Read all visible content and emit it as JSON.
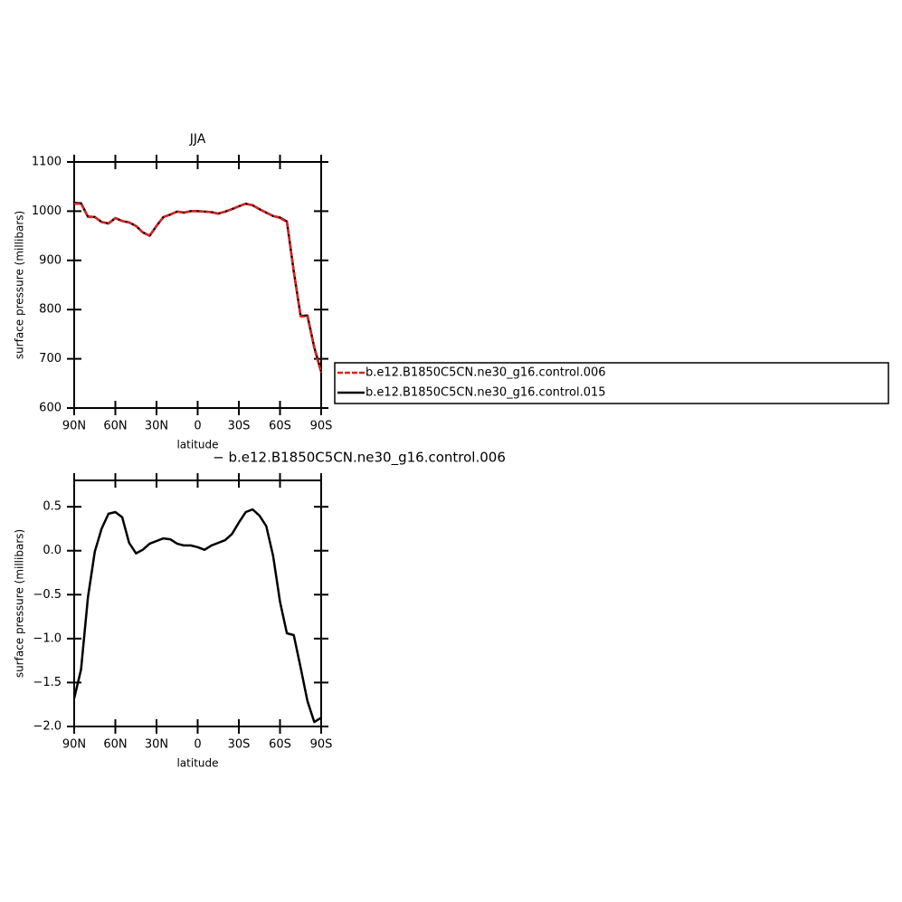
{
  "chart_data": [
    {
      "type": "line",
      "title": "JJA",
      "xlabel": "latitude",
      "ylabel": "surface pressure (millibars)",
      "x": [
        90,
        85,
        80,
        75,
        70,
        65,
        60,
        55,
        50,
        45,
        40,
        35,
        30,
        25,
        20,
        15,
        10,
        5,
        0,
        -5,
        -10,
        -15,
        -20,
        -25,
        -30,
        -35,
        -40,
        -45,
        -50,
        -55,
        -60,
        -65,
        -70,
        -75,
        -80,
        -85,
        -90
      ],
      "xlim": [
        90,
        -90
      ],
      "xticks": [
        {
          "value": 90,
          "label": "90N"
        },
        {
          "value": 60,
          "label": "60N"
        },
        {
          "value": 30,
          "label": "30N"
        },
        0,
        {
          "value": -30,
          "label": "30S"
        },
        {
          "value": -60,
          "label": "60S"
        },
        {
          "value": -90,
          "label": "90S"
        }
      ],
      "ylim": [
        600,
        1100
      ],
      "yticks": [
        600,
        700,
        800,
        900,
        1000,
        1100
      ],
      "series": [
        {
          "name": "b.e12.B1850C5CN.ne30_g16.control.015",
          "color": "#000000",
          "values": [
            1017,
            1016,
            989,
            988,
            978,
            975,
            986,
            980,
            977,
            970,
            957,
            950,
            970,
            988,
            993,
            999,
            997,
            1000,
            1000,
            999,
            998,
            995,
            999,
            1004,
            1010,
            1015,
            1012,
            1004,
            997,
            990,
            987,
            979,
            878,
            787,
            788,
            723,
            674
          ]
        },
        {
          "name": "b.e12.B1850C5CN.ne30_g16.control.006",
          "color": "#e0201c",
          "dashed": true,
          "values": [
            1015,
            1015,
            988,
            988,
            978,
            975,
            986,
            980,
            977,
            970,
            957,
            950,
            970,
            988,
            993,
            999,
            997,
            1000,
            1000,
            999,
            998,
            995,
            999,
            1004,
            1010,
            1015,
            1012,
            1004,
            997,
            990,
            986,
            978,
            877,
            786,
            786,
            721,
            672
          ]
        }
      ]
    },
    {
      "type": "line",
      "title": "− b.e12.B1850C5CN.ne30_g16.control.006",
      "xlabel": "latitude",
      "ylabel": "surface pressure (millibars)",
      "x": [
        90,
        85,
        80,
        75,
        70,
        65,
        60,
        55,
        50,
        45,
        40,
        35,
        30,
        25,
        20,
        15,
        10,
        5,
        0,
        -5,
        -10,
        -15,
        -20,
        -25,
        -30,
        -35,
        -40,
        -45,
        -50,
        -55,
        -60,
        -65,
        -70,
        -75,
        -80,
        -85,
        -90
      ],
      "xlim": [
        90,
        -90
      ],
      "xticks": [
        {
          "value": 90,
          "label": "90N"
        },
        {
          "value": 60,
          "label": "60N"
        },
        {
          "value": 30,
          "label": "30N"
        },
        0,
        {
          "value": -30,
          "label": "30S"
        },
        {
          "value": -60,
          "label": "60S"
        },
        {
          "value": -90,
          "label": "90S"
        }
      ],
      "ylim": [
        -2.0,
        0.8
      ],
      "yticks": [
        {
          "value": -2.0,
          "label": "−2.0"
        },
        {
          "value": -1.5,
          "label": "−1.5"
        },
        {
          "value": -1.0,
          "label": "−1.0"
        },
        {
          "value": -0.5,
          "label": "−0.5"
        },
        {
          "value": 0,
          "label": "0.0"
        },
        {
          "value": 0.5,
          "label": "0.5"
        }
      ],
      "color": "#000000",
      "values": [
        -1.68,
        -1.35,
        -0.53,
        -0.01,
        0.25,
        0.42,
        0.44,
        0.38,
        0.09,
        -0.03,
        0.01,
        0.08,
        0.11,
        0.14,
        0.13,
        0.08,
        0.06,
        0.06,
        0.04,
        0.01,
        0.06,
        0.09,
        0.12,
        0.19,
        0.32,
        0.44,
        0.47,
        0.4,
        0.28,
        -0.06,
        -0.58,
        -0.94,
        -0.96,
        -1.33,
        -1.71,
        -1.95,
        -1.9
      ]
    }
  ]
}
